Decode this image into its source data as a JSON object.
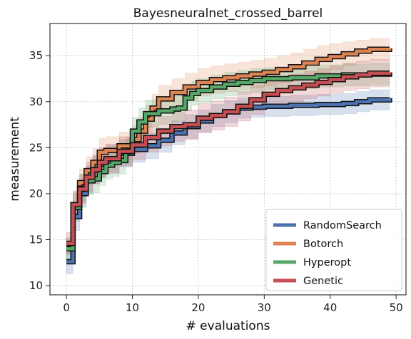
{
  "chart_data": {
    "type": "line",
    "title": "Bayesneuralnet_crossed_barrel",
    "xlabel": "# evaluations",
    "ylabel": "measurement",
    "xlim": [
      -2.5,
      51.5
    ],
    "ylim": [
      9,
      38.5
    ],
    "xticks": [
      0,
      10,
      20,
      30,
      40,
      50
    ],
    "yticks": [
      10,
      15,
      20,
      25,
      30,
      35
    ],
    "grid": true,
    "legend_position": "lower-right",
    "series": [
      {
        "name": "RandomSearch",
        "color": "#4c72b0",
        "x": [
          0,
          1,
          2,
          3,
          4,
          5,
          6,
          8,
          10,
          12,
          14,
          16,
          18,
          20,
          22,
          24,
          26,
          28,
          30,
          34,
          38,
          42,
          44,
          46,
          49
        ],
        "values": [
          12.6,
          17.5,
          20.0,
          21.5,
          22.6,
          23.2,
          23.8,
          24.4,
          24.8,
          25.2,
          25.8,
          26.6,
          27.3,
          27.9,
          28.5,
          28.9,
          29.3,
          29.4,
          29.5,
          29.6,
          29.7,
          29.8,
          30.0,
          30.2,
          30.4
        ],
        "band": [
          1.3,
          1.5,
          1.5,
          1.5,
          1.5,
          1.5,
          1.5,
          1.5,
          1.4,
          1.4,
          1.3,
          1.3,
          1.3,
          1.2,
          1.2,
          1.2,
          1.1,
          1.1,
          1.1,
          1.1,
          1.1,
          1.1,
          1.1,
          1.1,
          1.1
        ]
      },
      {
        "name": "Botorch",
        "color": "#dd8452",
        "x": [
          0,
          1,
          2,
          3,
          4,
          5,
          6,
          8,
          10,
          11,
          12,
          13,
          14,
          16,
          18,
          20,
          22,
          24,
          26,
          28,
          30,
          32,
          34,
          36,
          38,
          40,
          42,
          44,
          46,
          49
        ],
        "values": [
          14.3,
          18.8,
          21.2,
          22.5,
          23.4,
          24.5,
          24.7,
          25.2,
          25.9,
          26.8,
          28.1,
          29.3,
          30.3,
          31.0,
          31.6,
          32.1,
          32.4,
          32.6,
          32.8,
          33.0,
          33.2,
          33.5,
          33.8,
          34.2,
          34.6,
          34.9,
          35.2,
          35.5,
          35.7,
          35.8
        ],
        "band": [
          0.8,
          1.4,
          1.5,
          1.5,
          1.5,
          1.5,
          1.5,
          1.5,
          1.5,
          1.5,
          1.5,
          1.5,
          1.5,
          1.5,
          1.5,
          1.5,
          1.5,
          1.5,
          1.5,
          1.5,
          1.5,
          1.5,
          1.5,
          1.5,
          1.5,
          1.4,
          1.3,
          1.2,
          1.2,
          1.2
        ]
      },
      {
        "name": "Hyperopt",
        "color": "#55a868",
        "x": [
          0,
          1,
          2,
          3,
          4,
          5,
          6,
          7,
          8,
          9,
          10,
          11,
          12,
          14,
          16,
          17,
          18,
          19,
          20,
          22,
          24,
          26,
          28,
          30,
          34,
          38,
          42,
          46,
          49
        ],
        "values": [
          14.0,
          18.5,
          20.6,
          21.4,
          21.6,
          22.4,
          23.1,
          23.4,
          23.6,
          24.6,
          26.8,
          27.8,
          28.7,
          29.0,
          29.2,
          29.3,
          30.4,
          30.9,
          31.2,
          31.6,
          31.9,
          32.1,
          32.3,
          32.5,
          32.6,
          32.8,
          32.9,
          33.0,
          33.1
        ],
        "band": [
          1.2,
          1.5,
          1.5,
          1.5,
          1.5,
          1.5,
          1.5,
          1.5,
          1.5,
          1.5,
          1.5,
          1.5,
          1.5,
          1.5,
          1.4,
          1.4,
          1.4,
          1.3,
          1.3,
          1.3,
          1.3,
          1.3,
          1.3,
          1.2,
          1.2,
          1.2,
          1.2,
          1.2,
          1.2
        ]
      },
      {
        "name": "Genetic",
        "color": "#c44e52",
        "x": [
          0,
          1,
          2,
          3,
          4,
          5,
          6,
          8,
          10,
          12,
          14,
          16,
          18,
          20,
          22,
          24,
          26,
          28,
          30,
          32,
          34,
          36,
          38,
          40,
          42,
          44,
          46,
          49
        ],
        "values": [
          14.6,
          18.8,
          20.5,
          21.8,
          22.6,
          23.4,
          23.8,
          24.6,
          25.3,
          26.1,
          26.8,
          27.3,
          27.5,
          28.2,
          28.5,
          28.9,
          29.5,
          30.2,
          30.8,
          31.2,
          31.5,
          31.8,
          32.1,
          32.4,
          32.7,
          32.9,
          33.1,
          33.2
        ],
        "band": [
          1.2,
          1.5,
          1.6,
          1.6,
          1.6,
          1.6,
          1.6,
          1.6,
          1.6,
          1.6,
          1.6,
          1.6,
          1.6,
          1.6,
          1.6,
          1.6,
          1.6,
          1.6,
          1.5,
          1.5,
          1.5,
          1.5,
          1.5,
          1.5,
          1.5,
          1.5,
          1.5,
          1.5
        ]
      }
    ]
  }
}
